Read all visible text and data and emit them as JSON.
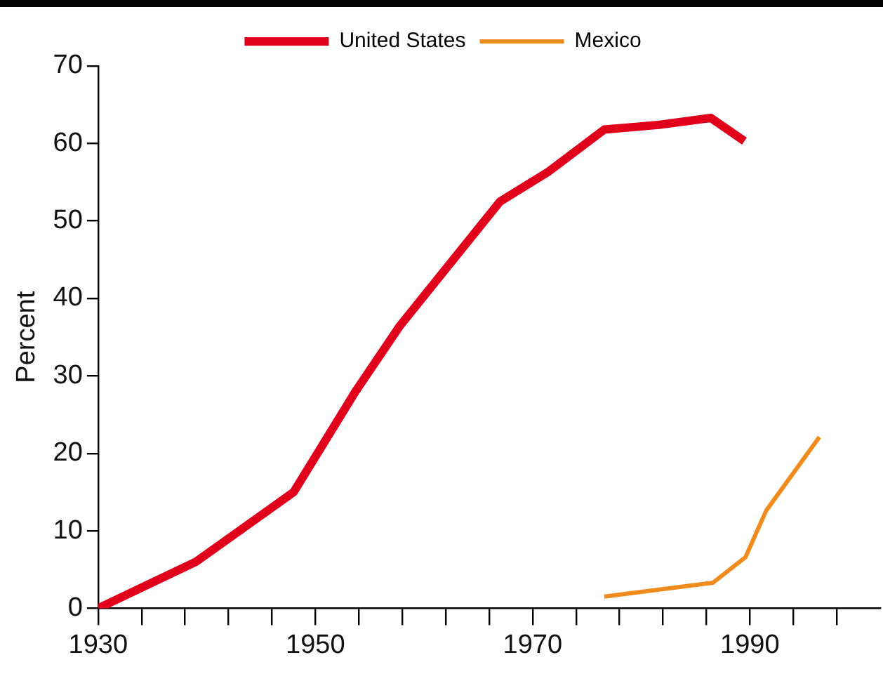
{
  "chart_data": {
    "type": "line",
    "ylabel": "Percent",
    "xlim": [
      1930,
      2002
    ],
    "xticks": [
      1930,
      {
        "value": 1934,
        "label": null
      },
      {
        "value": 1938,
        "label": null
      },
      {
        "value": 1942,
        "label": null
      },
      {
        "value": 1946,
        "label": null
      },
      1950,
      {
        "value": 1954,
        "label": null
      },
      {
        "value": 1958,
        "label": null
      },
      {
        "value": 1962,
        "label": null
      },
      {
        "value": 1966,
        "label": null
      },
      1970,
      {
        "value": 1974,
        "label": null
      },
      {
        "value": 1978,
        "label": null
      },
      {
        "value": 1982,
        "label": null
      },
      {
        "value": 1986,
        "label": null
      },
      1990,
      {
        "value": 1994,
        "label": null
      },
      {
        "value": 1998,
        "label": null
      }
    ],
    "ylim": [
      0,
      70
    ],
    "yticks": [
      0,
      10,
      20,
      30,
      40,
      50,
      60,
      70
    ],
    "grid": false,
    "legend": "top",
    "marker": "none",
    "line_style": "solid",
    "series": [
      {
        "name": "United States",
        "color": "#e0001b",
        "x": [
          1930,
          1939,
          1948,
          1953.7,
          1957.8,
          1967,
          1971.5,
          1976.6,
          1981.6,
          1986.4,
          1989.5
        ],
        "values": [
          0,
          6,
          15,
          28,
          36.5,
          52.5,
          56.4,
          61.8,
          62.4,
          63.3,
          60.3
        ]
      },
      {
        "name": "Mexico",
        "color": "#f08c1e",
        "x": [
          1976.6,
          1986.6,
          1989.6,
          1991.5,
          1996.4
        ],
        "values": [
          1.5,
          3.3,
          6.6,
          12.6,
          22.1
        ]
      }
    ]
  }
}
